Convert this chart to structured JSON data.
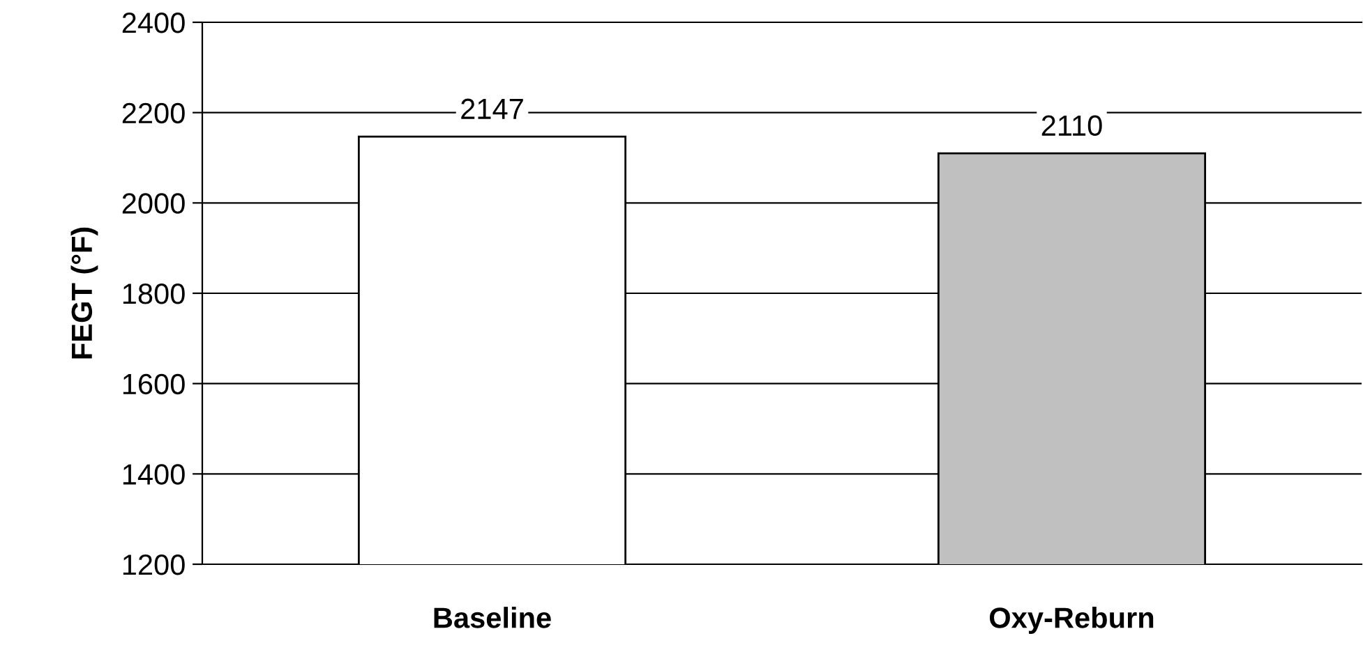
{
  "chart_data": {
    "type": "bar",
    "ylabel": "FEGT (°F)",
    "categories": [
      "Baseline",
      "Oxy-Reburn"
    ],
    "values": [
      2147,
      2110
    ],
    "colors": [
      "#ffffff",
      "#c0c0c0"
    ],
    "ylim": [
      1200,
      2400
    ],
    "yticks": [
      1200,
      1400,
      1600,
      1800,
      2000,
      2200,
      2400
    ],
    "grid": "y",
    "data_labels": true
  }
}
